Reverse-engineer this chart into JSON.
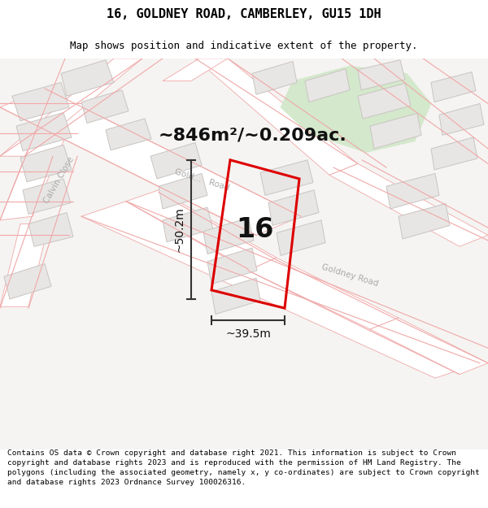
{
  "title": "16, GOLDNEY ROAD, CAMBERLEY, GU15 1DH",
  "subtitle": "Map shows position and indicative extent of the property.",
  "footer": "Contains OS data © Crown copyright and database right 2021. This information is subject to Crown copyright and database rights 2023 and is reproduced with the permission of HM Land Registry. The polygons (including the associated geometry, namely x, y co-ordinates) are subject to Crown copyright and database rights 2023 Ordnance Survey 100026316.",
  "area_label": "~846m²/~0.209ac.",
  "width_label": "~39.5m",
  "height_label": "~50.2m",
  "number_label": "16",
  "map_bg": "#f5f4f2",
  "road_line_color": "#f0a8a8",
  "road_fill": "#ffffff",
  "building_color": "#e8e6e4",
  "building_edge": "#c8c4c2",
  "green_patch": "#d4e8cc",
  "red_plot": "#dd0000",
  "dim_color": "#333333",
  "road_label_color": "#aaaaaa",
  "title_fontsize": 11,
  "subtitle_fontsize": 9,
  "footer_fontsize": 6.8,
  "area_fontsize": 16,
  "number_fontsize": 24,
  "dim_fontsize": 10,
  "road_label_fontsize": 7.5
}
